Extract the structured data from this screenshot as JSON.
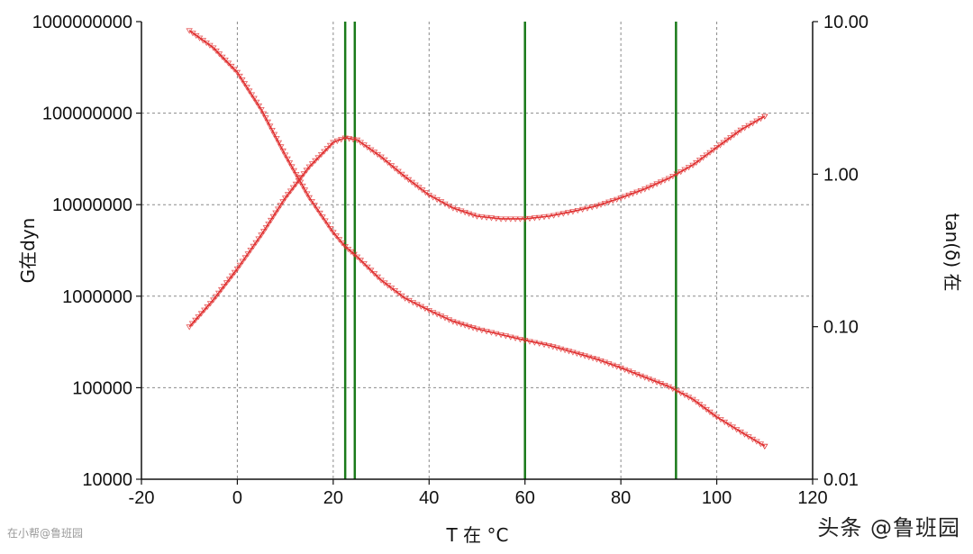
{
  "chart_data": {
    "type": "line",
    "xlabel": "T 在 °C",
    "ylabel_left": "G在dyn",
    "ylabel_right": "tan(δ) 在",
    "xlim": [
      -20,
      120
    ],
    "ylim_left": [
      10000,
      1000000000
    ],
    "ylim_right": [
      0.01,
      10
    ],
    "y_scale": "log",
    "grid": true,
    "x_ticks": [
      "-20",
      "0",
      "20",
      "40",
      "60",
      "80",
      "100",
      "120"
    ],
    "y_left_ticks": [
      "10000",
      "100000",
      "1000000",
      "10000000",
      "100000000",
      "1000000000"
    ],
    "y_right_ticks": [
      "0.01",
      "0.10",
      "1.00",
      "10.00"
    ],
    "vertical_markers": [
      22.5,
      24.5,
      60,
      91.5
    ],
    "series": [
      {
        "axis": "left",
        "color": "#e03030",
        "x": [
          -10,
          -5,
          0,
          5,
          10,
          15,
          20,
          22.5,
          25,
          30,
          35,
          40,
          45,
          50,
          55,
          60,
          65,
          70,
          75,
          80,
          85,
          90,
          95,
          100,
          105,
          110
        ],
        "y": [
          800000000,
          520000000,
          280000000,
          110000000,
          35000000,
          12000000,
          5000000,
          3500000,
          2700000,
          1500000,
          950000,
          700000,
          530000,
          440000,
          380000,
          330000,
          290000,
          245000,
          205000,
          165000,
          130000,
          103000,
          75000,
          48000,
          33000,
          23000
        ]
      },
      {
        "axis": "right",
        "color": "#e03030",
        "x": [
          -10,
          -5,
          0,
          5,
          10,
          15,
          20,
          22.5,
          25,
          30,
          35,
          40,
          45,
          50,
          55,
          60,
          65,
          70,
          75,
          80,
          85,
          90,
          95,
          100,
          105,
          110
        ],
        "y": [
          0.1,
          0.15,
          0.24,
          0.4,
          0.7,
          1.12,
          1.62,
          1.73,
          1.68,
          1.3,
          0.96,
          0.73,
          0.6,
          0.53,
          0.51,
          0.51,
          0.53,
          0.57,
          0.62,
          0.7,
          0.8,
          0.94,
          1.15,
          1.5,
          1.95,
          2.4
        ]
      }
    ]
  },
  "watermarks": {
    "small": "在小帮@鲁班园",
    "big": "头条 @鲁班园"
  },
  "colors": {
    "curve": "#e03030",
    "marker_line": "#1a7a1a",
    "axis": "#111111",
    "grid": "#8a8a8a"
  }
}
